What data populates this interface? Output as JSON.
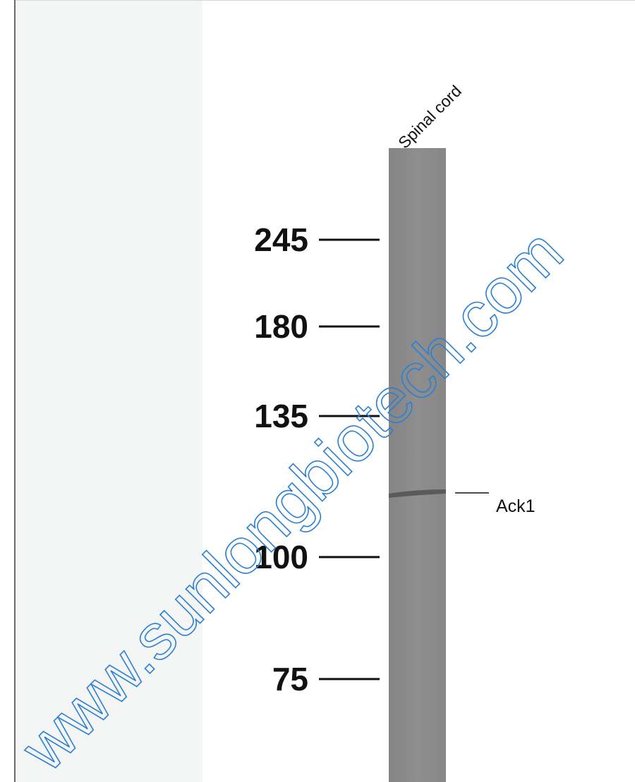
{
  "lane_label": "Spinal cord",
  "markers": [
    245,
    180,
    135,
    100,
    75
  ],
  "band_label": "Ack1",
  "watermark": "www.sunlongbiotech.com"
}
